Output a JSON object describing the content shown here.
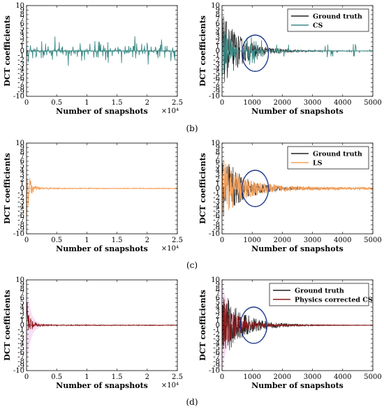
{
  "colors": {
    "ground_truth": "#222222",
    "cs": "#3d8a86",
    "ls": "#f5a05a",
    "physics": "#8b1a1a",
    "physics_band": "#f2c9ec",
    "circle": "#1f3a8a"
  },
  "captions": [
    "(b)",
    "(c)",
    "(d)"
  ],
  "chart_data": [
    {
      "id": "b-left",
      "type": "line",
      "xlabel": "Number of snapshots",
      "ylabel": "DCT coefficients",
      "xlim": [
        0,
        25000
      ],
      "ylim": [
        -10,
        10
      ],
      "xticks": [
        "0",
        "0.5",
        "1",
        "1.5",
        "2",
        "2.5"
      ],
      "xmultiplier": "×10⁴",
      "yticks": [
        "-10",
        "-9",
        "-8",
        "-7",
        "-6",
        "-5",
        "-4",
        "-3",
        "-2",
        "-1",
        "0",
        "1",
        "2",
        "3",
        "4",
        "5",
        "6",
        "7",
        "8",
        "9",
        "10"
      ],
      "series": [
        {
          "name": "",
          "kind": "sparse",
          "amplitude": 2.5
        }
      ],
      "legend": []
    },
    {
      "id": "b-right",
      "type": "line",
      "xlabel": "Number of snapshots",
      "ylabel": "DCT coefficients",
      "xlim": [
        0,
        5000
      ],
      "ylim": [
        -10,
        10
      ],
      "xticks": [
        "0",
        "1000",
        "2000",
        "3000",
        "4000",
        "5000"
      ],
      "xmultiplier": "",
      "yticks": [
        "-10",
        "-9",
        "-8",
        "-7",
        "-6",
        "-5",
        "-4",
        "-3",
        "-2",
        "-1",
        "0",
        "1",
        "2",
        "3",
        "4",
        "5",
        "6",
        "7",
        "8",
        "9",
        "10"
      ],
      "series": [
        {
          "name": "Ground truth",
          "kind": "decay",
          "amplitude": 8
        },
        {
          "name": "CS",
          "kind": "sparse-right",
          "amplitude": 4
        }
      ],
      "legend": [
        "Ground truth",
        "CS"
      ],
      "circle": {
        "x": 1100,
        "y": -0.5
      }
    },
    {
      "id": "c-left",
      "type": "line",
      "xlabel": "Number of snapshots",
      "ylabel": "DCT coefficients",
      "xlim": [
        0,
        25000
      ],
      "ylim": [
        -10,
        10
      ],
      "xticks": [
        "0",
        "0.5",
        "1",
        "1.5",
        "2",
        "2.5"
      ],
      "xmultiplier": "×10⁴",
      "yticks": [
        "-10",
        "-9",
        "-8",
        "-7",
        "-6",
        "-5",
        "-4",
        "-3",
        "-2",
        "-1",
        "0",
        "1",
        "2",
        "3",
        "4",
        "5",
        "6",
        "7",
        "8",
        "9",
        "10"
      ],
      "series": [
        {
          "name": "",
          "kind": "decay-left",
          "amplitude": 7
        }
      ],
      "legend": []
    },
    {
      "id": "c-right",
      "type": "line",
      "xlabel": "Number of snapshots",
      "ylabel": "DCT coefficients",
      "xlim": [
        0,
        5000
      ],
      "ylim": [
        -10,
        10
      ],
      "xticks": [
        "0",
        "1000",
        "2000",
        "3000",
        "4000",
        "5000"
      ],
      "xmultiplier": "",
      "yticks": [
        "-10",
        "-9",
        "-8",
        "-7",
        "-6",
        "-5",
        "-4",
        "-3",
        "-2",
        "-1",
        "0",
        "1",
        "2",
        "3",
        "4",
        "5",
        "6",
        "7",
        "8",
        "9",
        "10"
      ],
      "series": [
        {
          "name": "Ground truth",
          "kind": "decay",
          "amplitude": 8
        },
        {
          "name": "LS",
          "kind": "decay-ls",
          "amplitude": 6
        }
      ],
      "legend": [
        "Ground truth",
        "LS"
      ],
      "circle": {
        "x": 1100,
        "y": 0
      }
    },
    {
      "id": "d-left",
      "type": "line",
      "xlabel": "Number of snapshots",
      "ylabel": "DCT coefficients",
      "xlim": [
        0,
        25000
      ],
      "ylim": [
        -10,
        10
      ],
      "xticks": [
        "0",
        "0.5",
        "1",
        "1.5",
        "2",
        "2.5"
      ],
      "xmultiplier": "×10⁴",
      "yticks": [
        "-10",
        "-9",
        "-8",
        "-7",
        "-6",
        "-5",
        "-4",
        "-3",
        "-2",
        "-1",
        "0",
        "1",
        "2",
        "3",
        "4",
        "5",
        "6",
        "7",
        "8",
        "9",
        "10"
      ],
      "series": [
        {
          "name": "",
          "kind": "decay-left",
          "amplitude": 7
        }
      ],
      "legend": []
    },
    {
      "id": "d-right",
      "type": "line",
      "xlabel": "Number of snapshots",
      "ylabel": "DCT coefficients",
      "xlim": [
        0,
        5000
      ],
      "ylim": [
        -10,
        10
      ],
      "xticks": [
        "0",
        "1000",
        "2000",
        "3000",
        "4000",
        "5000"
      ],
      "xmultiplier": "",
      "yticks": [
        "-10",
        "-9",
        "-8",
        "-7",
        "-6",
        "-5",
        "-4",
        "-3",
        "-2",
        "-1",
        "0",
        "1",
        "2",
        "3",
        "4",
        "5",
        "6",
        "7",
        "8",
        "9",
        "10"
      ],
      "series": [
        {
          "name": "Ground truth",
          "kind": "decay",
          "amplitude": 8
        },
        {
          "name": "Physics corrected CS",
          "kind": "decay-phys",
          "amplitude": 6
        }
      ],
      "legend": [
        "Ground truth",
        "Physics corrected CS"
      ],
      "circle": {
        "x": 1050,
        "y": 0
      }
    }
  ]
}
